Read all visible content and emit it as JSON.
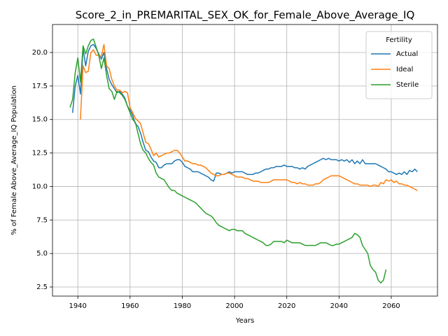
{
  "chart_data": {
    "type": "line",
    "title": "Score_2_in_PREMARITAL_SEX_OK_for_Female_Above_Average_IQ",
    "x_label": "Years",
    "y_label": "% of Female Above_Average_IQ Population",
    "legend_title": "Fertility",
    "legend_position": "upper right",
    "grid": true,
    "x": [
      1937,
      1938,
      1939,
      1940,
      1941,
      1942,
      1943,
      1944,
      1945,
      1946,
      1947,
      1948,
      1949,
      1950,
      1951,
      1952,
      1953,
      1954,
      1955,
      1956,
      1957,
      1958,
      1959,
      1960,
      1961,
      1962,
      1963,
      1964,
      1965,
      1966,
      1967,
      1968,
      1969,
      1970,
      1971,
      1972,
      1973,
      1974,
      1975,
      1976,
      1977,
      1978,
      1979,
      1980,
      1981,
      1982,
      1983,
      1984,
      1985,
      1986,
      1987,
      1988,
      1989,
      1990,
      1991,
      1992,
      1993,
      1994,
      1995,
      1996,
      1997,
      1998,
      1999,
      2000,
      2001,
      2002,
      2003,
      2004,
      2005,
      2006,
      2007,
      2008,
      2009,
      2010,
      2011,
      2012,
      2013,
      2014,
      2015,
      2016,
      2017,
      2018,
      2019,
      2020,
      2021,
      2022,
      2023,
      2024,
      2025,
      2026,
      2027,
      2028,
      2029,
      2030,
      2031,
      2032,
      2033,
      2034,
      2035,
      2036,
      2037,
      2038,
      2039,
      2040,
      2041,
      2042,
      2043,
      2044,
      2045,
      2046,
      2047,
      2048,
      2049,
      2050,
      2051,
      2052,
      2053,
      2054,
      2055,
      2056,
      2057,
      2058,
      2059,
      2060,
      2061,
      2062,
      2063,
      2064,
      2065,
      2066,
      2067,
      2068,
      2069,
      2070
    ],
    "series": [
      {
        "name": "Actual",
        "color": "#1f77b4",
        "values": [
          null,
          15.5,
          17.5,
          18.3,
          16.9,
          20.3,
          19.0,
          20.1,
          20.5,
          20.6,
          20.3,
          19.9,
          19.5,
          20.0,
          18.8,
          18.0,
          17.6,
          17.3,
          17.0,
          17.1,
          16.9,
          16.6,
          16.0,
          15.7,
          15.3,
          14.7,
          14.5,
          14.0,
          13.3,
          12.7,
          12.6,
          12.2,
          11.9,
          11.8,
          11.4,
          11.4,
          11.6,
          11.7,
          11.7,
          11.7,
          11.9,
          12.0,
          12.0,
          11.8,
          11.5,
          11.4,
          11.3,
          11.1,
          11.1,
          11.1,
          11.0,
          10.9,
          10.8,
          10.7,
          10.5,
          10.4,
          11.0,
          11.0,
          10.9,
          10.9,
          11.0,
          11.1,
          11.0,
          11.1,
          11.1,
          11.1,
          11.1,
          11.0,
          10.9,
          10.9,
          10.9,
          11.0,
          11.0,
          11.1,
          11.2,
          11.3,
          11.3,
          11.4,
          11.4,
          11.5,
          11.5,
          11.5,
          11.6,
          11.5,
          11.5,
          11.5,
          11.4,
          11.4,
          11.3,
          11.4,
          11.3,
          11.5,
          11.6,
          11.7,
          11.8,
          11.9,
          12.0,
          12.1,
          12.0,
          12.1,
          12.0,
          12.0,
          12.0,
          11.9,
          12.0,
          11.9,
          12.0,
          11.8,
          12.0,
          11.7,
          11.9,
          11.7,
          12.0,
          11.7,
          11.7,
          11.7,
          11.7,
          11.7,
          11.6,
          11.5,
          11.4,
          11.3,
          11.1,
          11.1,
          11.0,
          10.9,
          11.0,
          10.9,
          11.1,
          10.9,
          11.2,
          11.1,
          11.3,
          11.1
        ]
      },
      {
        "name": "Ideal",
        "color": "#ff7f0e",
        "values": [
          null,
          null,
          null,
          null,
          15.0,
          19.0,
          18.5,
          18.6,
          20.0,
          20.2,
          19.8,
          19.8,
          19.7,
          20.6,
          19.0,
          18.8,
          18.0,
          17.5,
          17.2,
          17.2,
          17.0,
          17.1,
          17.0,
          15.9,
          15.5,
          15.1,
          14.9,
          14.7,
          14.0,
          13.3,
          13.2,
          12.8,
          12.3,
          12.5,
          12.2,
          12.3,
          12.4,
          12.5,
          12.5,
          12.6,
          12.7,
          12.7,
          12.5,
          12.2,
          11.9,
          11.9,
          11.8,
          11.7,
          11.7,
          11.6,
          11.6,
          11.5,
          11.4,
          11.2,
          11.0,
          10.9,
          10.8,
          10.8,
          10.9,
          10.9,
          11.0,
          11.0,
          10.9,
          10.8,
          10.7,
          10.7,
          10.7,
          10.6,
          10.6,
          10.5,
          10.4,
          10.4,
          10.4,
          10.3,
          10.3,
          10.3,
          10.3,
          10.4,
          10.5,
          10.5,
          10.5,
          10.5,
          10.5,
          10.5,
          10.4,
          10.3,
          10.3,
          10.2,
          10.3,
          10.2,
          10.2,
          10.1,
          10.1,
          10.1,
          10.2,
          10.2,
          10.3,
          10.5,
          10.6,
          10.7,
          10.8,
          10.8,
          10.8,
          10.8,
          10.7,
          10.6,
          10.5,
          10.4,
          10.3,
          10.2,
          10.2,
          10.1,
          10.1,
          10.1,
          10.1,
          10.0,
          10.1,
          10.1,
          10.0,
          10.3,
          10.2,
          10.5,
          10.4,
          10.5,
          10.3,
          10.4,
          10.2,
          10.2,
          10.1,
          10.1,
          10.0,
          9.9,
          9.8,
          9.7
        ]
      },
      {
        "name": "Sterile",
        "color": "#2ca02c",
        "values": [
          15.9,
          16.5,
          18.5,
          19.6,
          17.8,
          20.5,
          19.9,
          20.5,
          20.9,
          21.0,
          20.4,
          19.8,
          18.8,
          19.6,
          18.3,
          17.3,
          17.1,
          16.5,
          17.1,
          17.0,
          16.8,
          16.5,
          16.0,
          15.5,
          15.0,
          14.8,
          14.0,
          13.2,
          12.7,
          12.5,
          12.1,
          11.8,
          11.6,
          11.0,
          10.7,
          10.6,
          10.5,
          10.2,
          9.9,
          9.7,
          9.7,
          9.5,
          9.4,
          9.3,
          9.2,
          9.1,
          9.0,
          8.9,
          8.8,
          8.6,
          8.4,
          8.2,
          8.0,
          7.9,
          7.8,
          7.6,
          7.3,
          7.1,
          7.0,
          6.9,
          6.8,
          6.7,
          6.8,
          6.8,
          6.7,
          6.7,
          6.7,
          6.5,
          6.4,
          6.3,
          6.2,
          6.1,
          6.0,
          5.9,
          5.8,
          5.6,
          5.6,
          5.7,
          5.9,
          5.9,
          5.9,
          5.9,
          5.8,
          6.0,
          5.9,
          5.8,
          5.8,
          5.8,
          5.8,
          5.7,
          5.6,
          5.6,
          5.6,
          5.6,
          5.6,
          5.7,
          5.8,
          5.8,
          5.8,
          5.7,
          5.6,
          5.6,
          5.7,
          5.7,
          5.8,
          5.9,
          6.0,
          6.1,
          6.2,
          6.5,
          6.4,
          6.2,
          5.6,
          5.3,
          5.0,
          4.1,
          3.8,
          3.6,
          3.0,
          2.8,
          3.0,
          3.8,
          null,
          null,
          null,
          null,
          null,
          null,
          null,
          null,
          null,
          null,
          null,
          null
        ]
      }
    ],
    "xlim": [
      1930.3,
      2077.7
    ],
    "xticks": [
      1940,
      1960,
      1980,
      2000,
      2020,
      2040,
      2060
    ],
    "ylim": [
      1.82,
      22.09
    ],
    "yticks": [
      {
        "value": 2.5,
        "label": "2.5"
      },
      {
        "value": 5,
        "label": "5.0"
      },
      {
        "value": 7.5,
        "label": "7.5"
      },
      {
        "value": 10,
        "label": "10.0"
      },
      {
        "value": 12.5,
        "label": "12.5"
      },
      {
        "value": 15,
        "label": "15.0"
      },
      {
        "value": 17.5,
        "label": "17.5"
      },
      {
        "value": 20,
        "label": "20.0"
      }
    ]
  }
}
